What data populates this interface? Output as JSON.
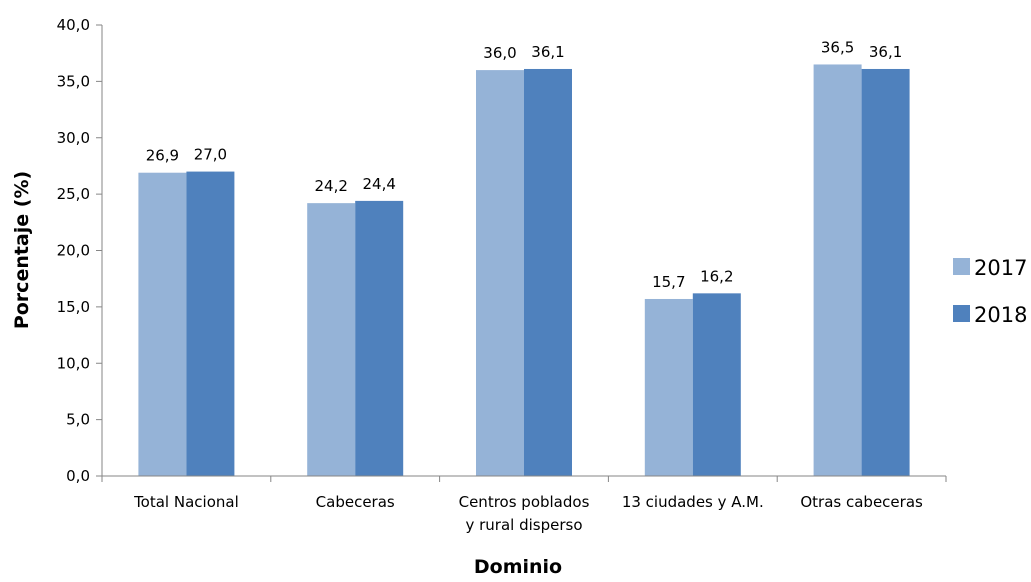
{
  "chart_data": {
    "type": "bar",
    "categories": [
      [
        "Total Nacional"
      ],
      [
        "Cabeceras"
      ],
      [
        "Centros poblados",
        "y rural disperso"
      ],
      [
        "13 ciudades y A.M."
      ],
      [
        "Otras cabeceras"
      ]
    ],
    "series": [
      {
        "name": "2017",
        "values": [
          26.9,
          24.2,
          36.0,
          15.7,
          36.5
        ],
        "labels": [
          "26,9",
          "24,2",
          "36,0",
          "15,7",
          "36,5"
        ],
        "color": "#95b3d7"
      },
      {
        "name": "2018",
        "values": [
          27.0,
          24.4,
          36.1,
          16.2,
          36.1
        ],
        "labels": [
          "27,0",
          "24,4",
          "36,1",
          "16,2",
          "36,1"
        ],
        "color": "#4f81bd"
      }
    ],
    "ylim": [
      0,
      40
    ],
    "y_ticks": [
      "0,0",
      "5,0",
      "10,0",
      "15,0",
      "20,0",
      "25,0",
      "30,0",
      "35,0",
      "40,0"
    ],
    "xlabel": "Dominio",
    "ylabel": "Porcentaje (%)",
    "grid": false,
    "legend_position": "right",
    "axis_color": "#868686"
  }
}
